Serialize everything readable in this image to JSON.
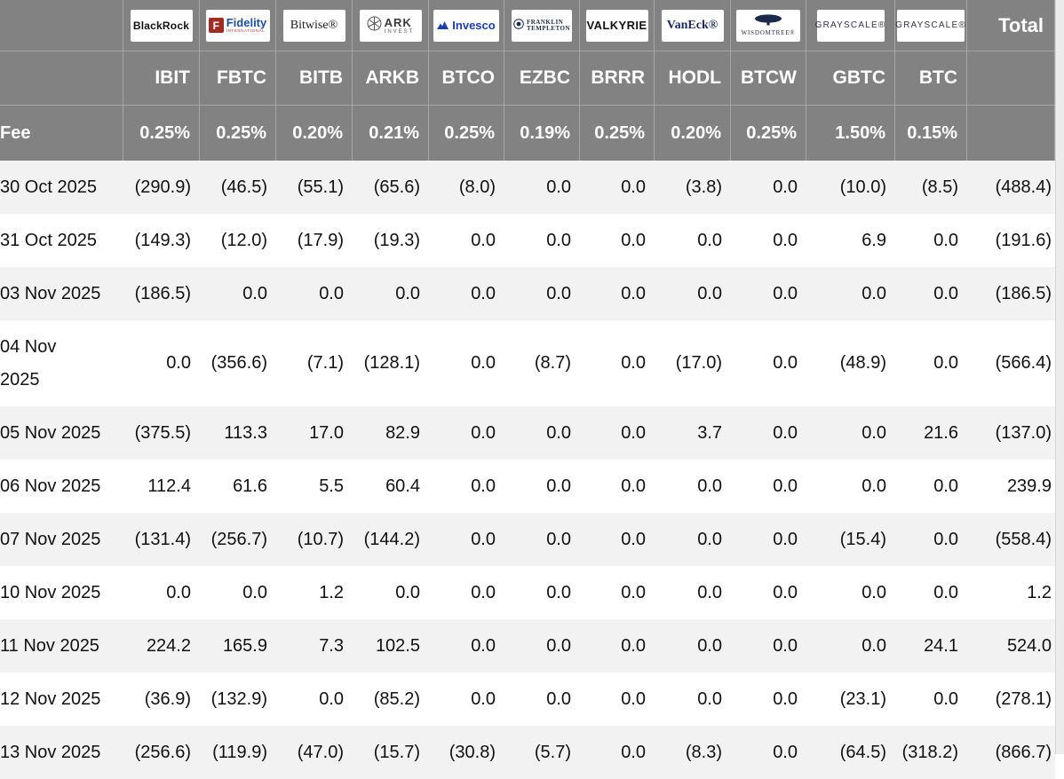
{
  "table": {
    "fee_label": "Fee",
    "total_label": "Total",
    "colors": {
      "header_bg": "#828282",
      "header_line": "#a6a6a6",
      "row_stripe": "#f2f2f2",
      "negative": "#ee3d2b",
      "gutter": "#ececec"
    },
    "funds": [
      {
        "ticker": "IBIT",
        "fee": "0.25%",
        "logo": {
          "kind": "blackrock",
          "lines": [
            "BlackRock"
          ]
        }
      },
      {
        "ticker": "FBTC",
        "fee": "0.25%",
        "logo": {
          "kind": "fidelity",
          "lines": [
            "F",
            "Fidelity",
            "INTERNATIONAL"
          ]
        }
      },
      {
        "ticker": "BITB",
        "fee": "0.20%",
        "logo": {
          "kind": "bitwise",
          "lines": [
            "Bitwise®"
          ]
        }
      },
      {
        "ticker": "ARKB",
        "fee": "0.21%",
        "logo": {
          "kind": "ark",
          "lines": [
            "ARK",
            "INVEST"
          ]
        }
      },
      {
        "ticker": "BTCO",
        "fee": "0.25%",
        "logo": {
          "kind": "invesco",
          "lines": [
            "Invesco"
          ]
        }
      },
      {
        "ticker": "EZBC",
        "fee": "0.19%",
        "logo": {
          "kind": "franklin",
          "lines": [
            "FRANKLIN",
            "TEMPLETON"
          ]
        }
      },
      {
        "ticker": "BRRR",
        "fee": "0.25%",
        "logo": {
          "kind": "valkyrie",
          "lines": [
            "VALKYRIE"
          ]
        }
      },
      {
        "ticker": "HODL",
        "fee": "0.20%",
        "logo": {
          "kind": "vaneck",
          "lines": [
            "VanEck®"
          ]
        }
      },
      {
        "ticker": "BTCW",
        "fee": "0.25%",
        "logo": {
          "kind": "wisdomtree",
          "lines": [
            "WISDOMTREE®"
          ]
        }
      },
      {
        "ticker": "GBTC",
        "fee": "1.50%",
        "logo": {
          "kind": "grayscale",
          "lines": [
            "GRAYSCALE®"
          ]
        }
      },
      {
        "ticker": "BTC",
        "fee": "0.15%",
        "logo": {
          "kind": "grayscale",
          "lines": [
            "GRAYSCALE®"
          ]
        }
      }
    ],
    "rows": [
      {
        "date": "30 Oct 2025",
        "values": [
          "(290.9)",
          "(46.5)",
          "(55.1)",
          "(65.6)",
          "(8.0)",
          "0.0",
          "0.0",
          "(3.8)",
          "0.0",
          "(10.0)",
          "(8.5)"
        ],
        "total": "(488.4)"
      },
      {
        "date": "31 Oct 2025",
        "values": [
          "(149.3)",
          "(12.0)",
          "(17.9)",
          "(19.3)",
          "0.0",
          "0.0",
          "0.0",
          "0.0",
          "0.0",
          "6.9",
          "0.0"
        ],
        "total": "(191.6)"
      },
      {
        "date": "03 Nov 2025",
        "values": [
          "(186.5)",
          "0.0",
          "0.0",
          "0.0",
          "0.0",
          "0.0",
          "0.0",
          "0.0",
          "0.0",
          "0.0",
          "0.0"
        ],
        "total": "(186.5)"
      },
      {
        "date": "04 Nov\n2025",
        "values": [
          "0.0",
          "(356.6)",
          "(7.1)",
          "(128.1)",
          "0.0",
          "(8.7)",
          "0.0",
          "(17.0)",
          "0.0",
          "(48.9)",
          "0.0"
        ],
        "total": "(566.4)"
      },
      {
        "date": "05 Nov 2025",
        "values": [
          "(375.5)",
          "113.3",
          "17.0",
          "82.9",
          "0.0",
          "0.0",
          "0.0",
          "3.7",
          "0.0",
          "0.0",
          "21.6"
        ],
        "total": "(137.0)"
      },
      {
        "date": "06 Nov 2025",
        "values": [
          "112.4",
          "61.6",
          "5.5",
          "60.4",
          "0.0",
          "0.0",
          "0.0",
          "0.0",
          "0.0",
          "0.0",
          "0.0"
        ],
        "total": "239.9"
      },
      {
        "date": "07 Nov 2025",
        "values": [
          "(131.4)",
          "(256.7)",
          "(10.7)",
          "(144.2)",
          "0.0",
          "0.0",
          "0.0",
          "0.0",
          "0.0",
          "(15.4)",
          "0.0"
        ],
        "total": "(558.4)"
      },
      {
        "date": "10 Nov 2025",
        "values": [
          "0.0",
          "0.0",
          "1.2",
          "0.0",
          "0.0",
          "0.0",
          "0.0",
          "0.0",
          "0.0",
          "0.0",
          "0.0"
        ],
        "total": "1.2"
      },
      {
        "date": "11 Nov 2025",
        "values": [
          "224.2",
          "165.9",
          "7.3",
          "102.5",
          "0.0",
          "0.0",
          "0.0",
          "0.0",
          "0.0",
          "0.0",
          "24.1"
        ],
        "total": "524.0"
      },
      {
        "date": "12 Nov 2025",
        "values": [
          "(36.9)",
          "(132.9)",
          "0.0",
          "(85.2)",
          "0.0",
          "0.0",
          "0.0",
          "0.0",
          "0.0",
          "(23.1)",
          "0.0"
        ],
        "total": "(278.1)"
      },
      {
        "date": "13 Nov 2025",
        "values": [
          "(256.6)",
          "(119.9)",
          "(47.0)",
          "(15.7)",
          "(30.8)",
          "(5.7)",
          "0.0",
          "(8.3)",
          "0.0",
          "(64.5)",
          "(318.2)"
        ],
        "total": "(866.7)"
      }
    ]
  }
}
